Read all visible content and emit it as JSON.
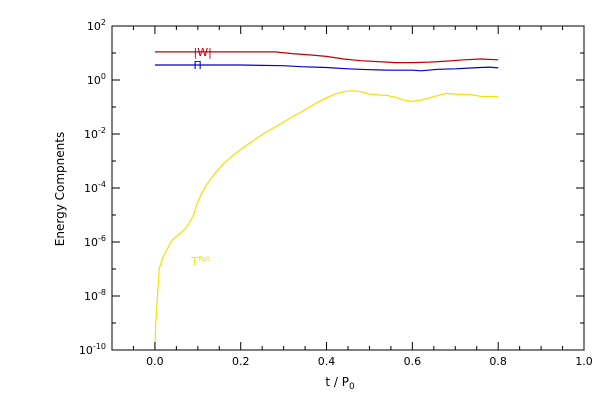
{
  "chart_data": {
    "type": "line",
    "xlabel": "t / P",
    "xlabel_sub": "0",
    "ylabel": "Energy Compnents",
    "xlim": [
      -0.1,
      1.0
    ],
    "ylim": [
      1e-10,
      100
    ],
    "yscale": "log",
    "grid": false,
    "x_ticks": [
      {
        "value": 0.0,
        "label": "0.0"
      },
      {
        "value": 0.2,
        "label": "0.2"
      },
      {
        "value": 0.4,
        "label": "0.4"
      },
      {
        "value": 0.6,
        "label": "0.6"
      },
      {
        "value": 0.8,
        "label": "0.8"
      },
      {
        "value": 1.0,
        "label": "1.0"
      }
    ],
    "y_ticks": [
      {
        "value": 100.0,
        "base": "10",
        "exp": "2"
      },
      {
        "value": 1.0,
        "base": "10",
        "exp": "0"
      },
      {
        "value": 0.01,
        "base": "10",
        "exp": "-2"
      },
      {
        "value": 0.0001,
        "base": "10",
        "exp": "-4"
      },
      {
        "value": 1e-06,
        "base": "10",
        "exp": "-6"
      },
      {
        "value": 1e-08,
        "base": "10",
        "exp": "-8"
      },
      {
        "value": 1e-10,
        "base": "10",
        "exp": "-10"
      }
    ],
    "series": [
      {
        "name": "|W|",
        "label_at": [
          0.09,
          11
        ],
        "color": "#c00000",
        "points": [
          [
            0.0,
            11
          ],
          [
            0.1,
            11
          ],
          [
            0.2,
            11
          ],
          [
            0.28,
            11
          ],
          [
            0.32,
            9.5
          ],
          [
            0.36,
            8.5
          ],
          [
            0.4,
            7.5
          ],
          [
            0.44,
            6
          ],
          [
            0.48,
            5.2
          ],
          [
            0.52,
            4.8
          ],
          [
            0.56,
            4.4
          ],
          [
            0.6,
            4.4
          ],
          [
            0.64,
            4.6
          ],
          [
            0.68,
            5
          ],
          [
            0.72,
            5.6
          ],
          [
            0.76,
            6
          ],
          [
            0.8,
            5.6
          ]
        ]
      },
      {
        "name": "Π",
        "label_at": [
          0.09,
          3.6
        ],
        "color": "#0000c8",
        "points": [
          [
            0.0,
            3.6
          ],
          [
            0.1,
            3.6
          ],
          [
            0.2,
            3.6
          ],
          [
            0.3,
            3.4
          ],
          [
            0.34,
            3.1
          ],
          [
            0.4,
            2.9
          ],
          [
            0.45,
            2.6
          ],
          [
            0.5,
            2.4
          ],
          [
            0.55,
            2.3
          ],
          [
            0.6,
            2.3
          ],
          [
            0.62,
            2.2
          ],
          [
            0.66,
            2.5
          ],
          [
            0.7,
            2.6
          ],
          [
            0.74,
            2.8
          ],
          [
            0.78,
            3.0
          ],
          [
            0.8,
            2.8
          ]
        ]
      },
      {
        "name": "T",
        "name_sup": "Rot",
        "label_at": [
          0.085,
          2e-07
        ],
        "color": "#f0e000",
        "points": [
          [
            0.0,
            1e-10
          ],
          [
            0.002,
            1e-09
          ],
          [
            0.006,
            1e-08
          ],
          [
            0.01,
            1e-07
          ],
          [
            0.015,
            1.8e-07
          ],
          [
            0.02,
            3e-07
          ],
          [
            0.03,
            6e-07
          ],
          [
            0.04,
            1.2e-06
          ],
          [
            0.05,
            1.6e-06
          ],
          [
            0.06,
            2.2e-06
          ],
          [
            0.07,
            3e-06
          ],
          [
            0.08,
            5e-06
          ],
          [
            0.09,
            1e-05
          ],
          [
            0.1,
            3e-05
          ],
          [
            0.11,
            7e-05
          ],
          [
            0.12,
            0.00013
          ],
          [
            0.14,
            0.00035
          ],
          [
            0.16,
            0.0008
          ],
          [
            0.18,
            0.0015
          ],
          [
            0.2,
            0.0027
          ],
          [
            0.22,
            0.0045
          ],
          [
            0.24,
            0.0075
          ],
          [
            0.26,
            0.012
          ],
          [
            0.28,
            0.018
          ],
          [
            0.3,
            0.028
          ],
          [
            0.32,
            0.043
          ],
          [
            0.34,
            0.065
          ],
          [
            0.36,
            0.1
          ],
          [
            0.38,
            0.15
          ],
          [
            0.4,
            0.22
          ],
          [
            0.42,
            0.3
          ],
          [
            0.44,
            0.37
          ],
          [
            0.46,
            0.4
          ],
          [
            0.48,
            0.37
          ],
          [
            0.5,
            0.3
          ],
          [
            0.52,
            0.28
          ],
          [
            0.54,
            0.27
          ],
          [
            0.56,
            0.23
          ],
          [
            0.58,
            0.18
          ],
          [
            0.6,
            0.16
          ],
          [
            0.62,
            0.18
          ],
          [
            0.64,
            0.22
          ],
          [
            0.66,
            0.27
          ],
          [
            0.68,
            0.32
          ],
          [
            0.7,
            0.3
          ],
          [
            0.72,
            0.29
          ],
          [
            0.74,
            0.28
          ],
          [
            0.76,
            0.25
          ],
          [
            0.78,
            0.24
          ],
          [
            0.8,
            0.25
          ]
        ]
      }
    ]
  }
}
